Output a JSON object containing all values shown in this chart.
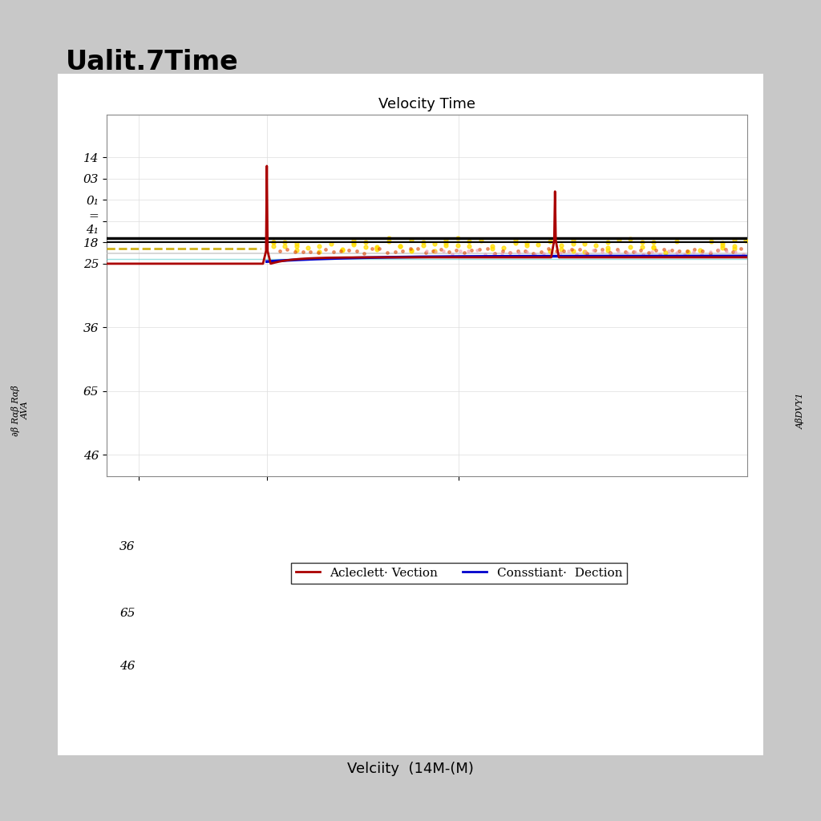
{
  "fig_title": "Ualit.7Time",
  "fig_subtitle": "Velciity  (14M-(M)",
  "plot_title": "Velocity Time",
  "background_color": "#c8c8c8",
  "plot_bg_color": "#ffffff",
  "legend_entries": [
    "Acleclett· Vection",
    "Consstiant·  Dection"
  ],
  "legend_colors": [
    "#cc0000",
    "#1a1aff"
  ],
  "ytick_labels": [
    "14",
    "03",
    "0₁",
    "=\n4₁",
    "18",
    "25",
    "36",
    "65",
    "46"
  ],
  "ytick_positions": [
    9.5,
    9.0,
    8.5,
    8.0,
    7.5,
    7.0,
    5.5,
    4.0,
    2.5
  ],
  "xlim": [
    0,
    10
  ],
  "ylim": [
    2.0,
    10.5
  ],
  "spike1_x": 2.5,
  "spike2_x": 7.0,
  "spike1_height": 9.3,
  "spike2_height": 8.7,
  "red_baseline_y": 7.0,
  "red_settled_y": 7.15,
  "black_line1_y": 7.6,
  "black_line2_y": 7.5,
  "yellow_dashed_y": 7.35,
  "gray_line_y": 7.25,
  "cyan_line_y": 7.12,
  "blue_start_y": 7.05,
  "blue_end_y": 7.18
}
